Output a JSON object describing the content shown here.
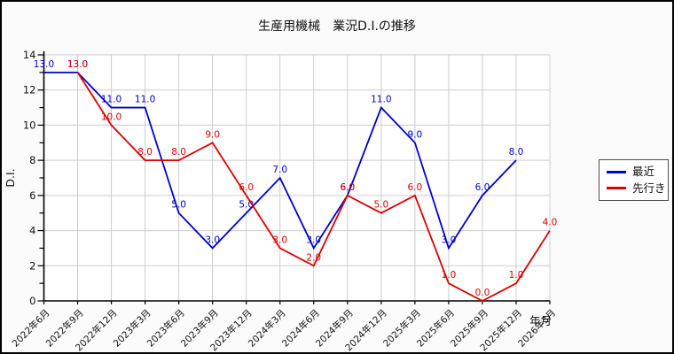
{
  "chart_data": {
    "type": "line",
    "title": "生産用機械　業況D.I.の推移",
    "xlabel": "年月",
    "ylabel": "D.I.",
    "ylim": [
      0,
      14
    ],
    "yticks": [
      0,
      2,
      4,
      6,
      8,
      10,
      12,
      14
    ],
    "grid": true,
    "legend_position": "right",
    "point_labels": "one-decimal",
    "categories": [
      "2022年6月",
      "2022年9月",
      "2022年12月",
      "2023年3月",
      "2023年6月",
      "2023年9月",
      "2023年12月",
      "2024年3月",
      "2024年6月",
      "2024年9月",
      "2024年12月",
      "2025年3月",
      "2025年6月",
      "2025年9月",
      "2025年12月",
      "2026年3月"
    ],
    "series": [
      {
        "name": "最近",
        "slug": "recent",
        "color": "#0000cc",
        "values": [
          13.0,
          13.0,
          11.0,
          11.0,
          5.0,
          3.0,
          5.0,
          7.0,
          3.0,
          6.0,
          11.0,
          9.0,
          3.0,
          6.0,
          8.0,
          null
        ]
      },
      {
        "name": "先行き",
        "slug": "outlook",
        "color": "#dd0000",
        "values": [
          null,
          13.0,
          10.0,
          8.0,
          8.0,
          9.0,
          6.0,
          3.0,
          2.0,
          6.0,
          5.0,
          6.0,
          1.0,
          0.0,
          1.0,
          4.0
        ]
      }
    ]
  },
  "colors": {
    "figure_background": "#fafafa",
    "plot_background": "#ffffff",
    "grid": "#cccccc",
    "axis": "#000000",
    "text": "#111111",
    "legend_border": "#4d4d4d"
  }
}
